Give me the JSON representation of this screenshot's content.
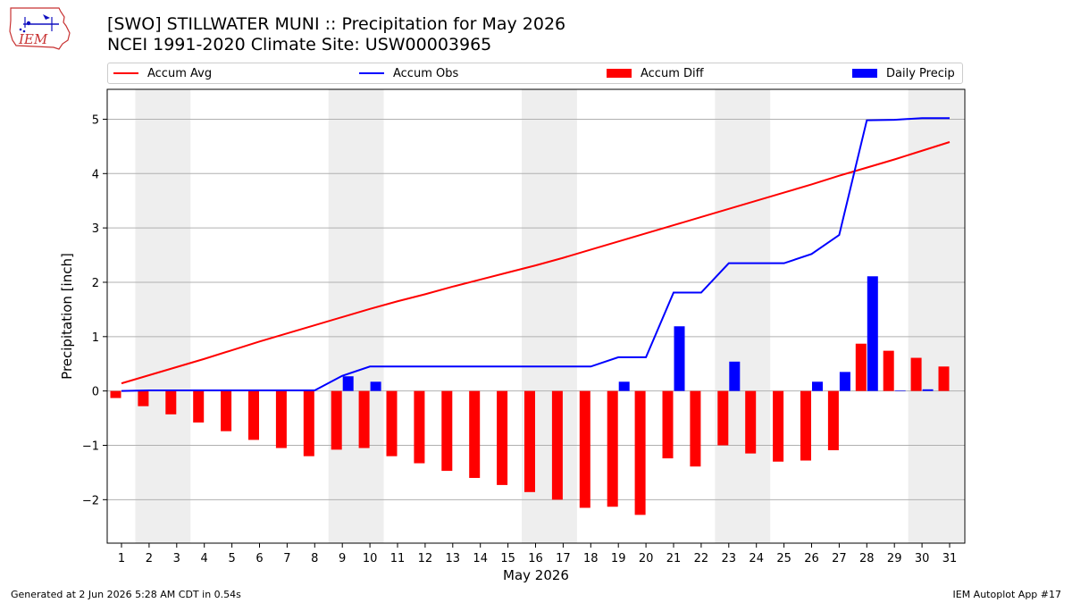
{
  "header": {
    "logo_text": "IEM",
    "title_line1": "[SWO] STILLWATER MUNI :: Precipitation for May 2026",
    "title_line2": "NCEI 1991-2020 Climate Site: USW00003965"
  },
  "footer": {
    "generated": "Generated at 2 Jun 2026 5:28 AM CDT in 0.54s",
    "app": "IEM Autoplot App #17"
  },
  "colors": {
    "accum_avg": "#ff0000",
    "accum_obs": "#0000ff",
    "accum_diff": "#ff0000",
    "daily_precip": "#0000ff",
    "weekend_band": "#eeeeee",
    "grid": "#b0b0b0"
  },
  "chart_data": {
    "type": "bar",
    "xlabel": "May 2026",
    "ylabel": "Precipitation [inch]",
    "ylim": [
      -2.8,
      5.55
    ],
    "yticks": [
      -2,
      -1,
      0,
      1,
      2,
      3,
      4,
      5
    ],
    "ytick_labels": [
      "−2",
      "−1",
      "0",
      "1",
      "2",
      "3",
      "4",
      "5"
    ],
    "grid": "horizontal",
    "legend_placement": "top",
    "categories": [
      "1",
      "2",
      "3",
      "4",
      "5",
      "6",
      "7",
      "8",
      "9",
      "10",
      "11",
      "12",
      "13",
      "14",
      "15",
      "16",
      "17",
      "18",
      "19",
      "20",
      "21",
      "22",
      "23",
      "24",
      "25",
      "26",
      "27",
      "28",
      "29",
      "30",
      "31"
    ],
    "weekend_days": [
      2,
      3,
      9,
      10,
      16,
      17,
      23,
      24,
      30,
      31
    ],
    "series": [
      {
        "name": "Accum Avg",
        "kind": "line",
        "values": [
          0.14,
          0.29,
          0.44,
          0.59,
          0.75,
          0.91,
          1.06,
          1.21,
          1.36,
          1.51,
          1.65,
          1.78,
          1.92,
          2.05,
          2.18,
          2.31,
          2.45,
          2.6,
          2.75,
          2.9,
          3.05,
          3.2,
          3.35,
          3.5,
          3.65,
          3.8,
          3.96,
          4.11,
          4.26,
          4.42,
          4.58
        ]
      },
      {
        "name": "Accum Obs",
        "kind": "line",
        "values": [
          0.0,
          0.01,
          0.01,
          0.01,
          0.01,
          0.01,
          0.01,
          0.01,
          0.28,
          0.45,
          0.45,
          0.45,
          0.45,
          0.45,
          0.45,
          0.45,
          0.45,
          0.45,
          0.62,
          0.62,
          1.81,
          1.81,
          2.35,
          2.35,
          2.35,
          2.52,
          2.87,
          4.98,
          4.99,
          5.02,
          5.02
        ]
      },
      {
        "name": "Accum Diff",
        "kind": "bar",
        "values": [
          -0.13,
          -0.28,
          -0.43,
          -0.58,
          -0.74,
          -0.9,
          -1.05,
          -1.2,
          -1.08,
          -1.05,
          -1.2,
          -1.33,
          -1.47,
          -1.6,
          -1.73,
          -1.86,
          -2.0,
          -2.15,
          -2.13,
          -2.28,
          -1.24,
          -1.39,
          -1.0,
          -1.15,
          -1.3,
          -1.28,
          -1.09,
          0.87,
          0.74,
          0.61,
          0.45
        ]
      },
      {
        "name": "Daily Precip",
        "kind": "bar",
        "values": [
          0.0,
          0.01,
          0.0,
          0.0,
          0.0,
          0.0,
          0.0,
          0.0,
          0.27,
          0.17,
          0.0,
          0.0,
          0.0,
          0.0,
          0.0,
          0.0,
          0.0,
          0.0,
          0.17,
          0.0,
          1.19,
          0.0,
          0.54,
          0.0,
          0.0,
          0.17,
          0.35,
          2.11,
          0.01,
          0.03,
          0.0
        ]
      }
    ]
  }
}
